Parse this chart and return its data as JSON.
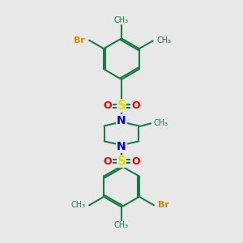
{
  "background_color": "#e8e8e8",
  "bond_color": "#1a7a4a",
  "N_color": "#0000dd",
  "S_color": "#dddd00",
  "O_color": "#ee0000",
  "Br_color": "#cc8800",
  "line_width": 1.5,
  "font_size": 8,
  "figsize": [
    3.0,
    3.0
  ],
  "dpi": 100,
  "xlim": [
    0,
    10
  ],
  "ylim": [
    0,
    10
  ]
}
